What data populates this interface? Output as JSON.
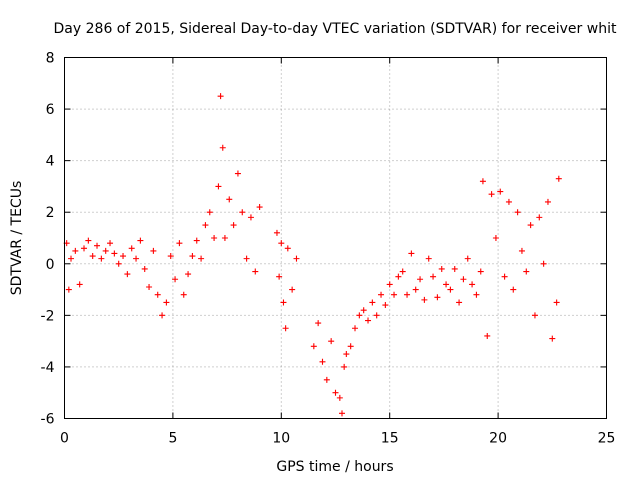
{
  "chart_data": {
    "type": "scatter",
    "title": "Day 286 of 2015, Sidereal Day-to-day VTEC variation (SDTVAR) for receiver whit",
    "xlabel": "GPS time / hours",
    "ylabel": "SDTVAR / TECUs",
    "xlim": [
      0,
      25
    ],
    "ylim": [
      -6,
      8
    ],
    "xticks": [
      0,
      5,
      10,
      15,
      20,
      25
    ],
    "yticks": [
      -6,
      -4,
      -2,
      0,
      2,
      4,
      6,
      8
    ],
    "xtick_labels": [
      "0",
      "5",
      "10",
      "15",
      "20",
      "25"
    ],
    "ytick_labels": [
      "-6",
      "-4",
      "-2",
      "0",
      "2",
      "4",
      "6",
      "8"
    ],
    "grid": true,
    "marker": "plus",
    "color": "#ff0000",
    "series": [
      {
        "name": "SDTVAR",
        "x": [
          0.1,
          0.2,
          0.3,
          0.5,
          0.7,
          0.9,
          1.1,
          1.3,
          1.5,
          1.7,
          1.9,
          2.1,
          2.3,
          2.5,
          2.7,
          2.9,
          3.1,
          3.3,
          3.5,
          3.7,
          3.9,
          4.1,
          4.3,
          4.5,
          4.7,
          4.9,
          5.1,
          5.3,
          5.5,
          5.7,
          5.9,
          6.1,
          6.3,
          6.5,
          6.7,
          6.9,
          7.1,
          7.2,
          7.3,
          7.4,
          7.6,
          7.8,
          8.0,
          8.2,
          8.4,
          8.6,
          8.8,
          9.0,
          9.8,
          9.9,
          10.0,
          10.1,
          10.2,
          10.3,
          10.5,
          10.7,
          11.5,
          11.7,
          11.9,
          12.1,
          12.3,
          12.5,
          12.7,
          12.8,
          12.9,
          13.0,
          13.2,
          13.4,
          13.6,
          13.8,
          14.0,
          14.2,
          14.4,
          14.6,
          14.8,
          15.0,
          15.2,
          15.4,
          15.6,
          15.8,
          16.0,
          16.2,
          16.4,
          16.6,
          16.8,
          17.0,
          17.2,
          17.4,
          17.6,
          17.8,
          18.0,
          18.2,
          18.4,
          18.6,
          18.8,
          19.0,
          19.2,
          19.3,
          19.5,
          19.7,
          19.9,
          20.1,
          20.3,
          20.5,
          20.7,
          20.9,
          21.1,
          21.3,
          21.5,
          21.7,
          21.9,
          22.1,
          22.3,
          22.5,
          22.7,
          22.8
        ],
        "y": [
          0.8,
          -1.0,
          0.2,
          0.5,
          -0.8,
          0.6,
          0.9,
          0.3,
          0.7,
          0.2,
          0.5,
          0.8,
          0.4,
          0.0,
          0.3,
          -0.4,
          0.6,
          0.2,
          0.9,
          -0.2,
          -0.9,
          0.5,
          -1.2,
          -2.0,
          -1.5,
          0.3,
          -0.6,
          0.8,
          -1.2,
          -0.4,
          0.3,
          0.9,
          0.2,
          1.5,
          2.0,
          1.0,
          3.0,
          6.5,
          4.5,
          1.0,
          2.5,
          1.5,
          3.5,
          2.0,
          0.2,
          1.8,
          -0.3,
          2.2,
          1.2,
          -0.5,
          0.8,
          -1.5,
          -2.5,
          0.6,
          -1.0,
          0.2,
          -3.2,
          -2.3,
          -3.8,
          -4.5,
          -3.0,
          -5.0,
          -5.2,
          -5.8,
          -4.0,
          -3.5,
          -3.2,
          -2.5,
          -2.0,
          -1.8,
          -2.2,
          -1.5,
          -2.0,
          -1.2,
          -1.6,
          -0.8,
          -1.2,
          -0.5,
          -0.3,
          -1.2,
          0.4,
          -1.0,
          -0.6,
          -1.4,
          0.2,
          -0.5,
          -1.3,
          -0.2,
          -0.8,
          -1.0,
          -0.2,
          -1.5,
          -0.6,
          0.2,
          -0.8,
          -1.2,
          -0.3,
          3.2,
          -2.8,
          2.7,
          1.0,
          2.8,
          -0.5,
          2.4,
          -1.0,
          2.0,
          0.5,
          -0.3,
          1.5,
          -2.0,
          1.8,
          0.0,
          2.4,
          -2.9,
          -1.5,
          3.3
        ]
      }
    ]
  }
}
